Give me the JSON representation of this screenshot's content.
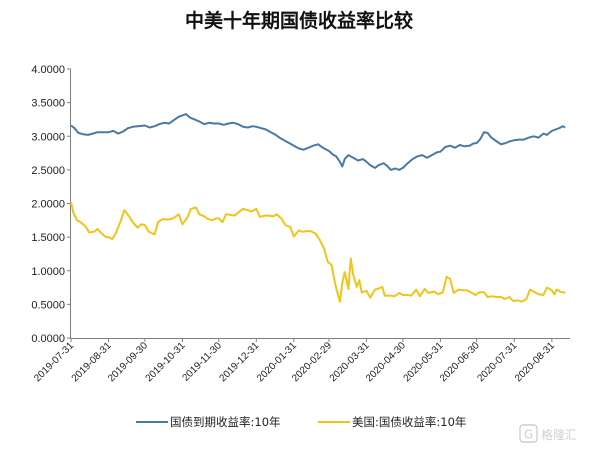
{
  "chart_data": {
    "type": "line",
    "title": "中美十年期国债收益率比较",
    "xlabel": "",
    "ylabel": "",
    "ylim": [
      0,
      4
    ],
    "yticks": [
      "0.0000",
      "0.5000",
      "1.0000",
      "1.5000",
      "2.0000",
      "2.5000",
      "3.0000",
      "3.5000",
      "4.0000"
    ],
    "xticks": [
      "2019-07-31",
      "2019-08-31",
      "2019-09-30",
      "2019-10-31",
      "2019-11-30",
      "2019-12-31",
      "2020-01-31",
      "2020-02-29",
      "2020-03-31",
      "2020-04-30",
      "2020-05-31",
      "2020-06-30",
      "2020-07-31",
      "2020-08-31"
    ],
    "xlim": [
      "2019-07-31",
      "2020-09-15"
    ],
    "grid": false,
    "legend": "bottom",
    "series": [
      {
        "name": "国债到期收益率:10年",
        "color": "#4a79a5",
        "points": [
          [
            "2019-07-31",
            3.16
          ],
          [
            "2019-08-03",
            3.12
          ],
          [
            "2019-08-06",
            3.05
          ],
          [
            "2019-08-10",
            3.03
          ],
          [
            "2019-08-14",
            3.02
          ],
          [
            "2019-08-18",
            3.04
          ],
          [
            "2019-08-22",
            3.06
          ],
          [
            "2019-08-26",
            3.06
          ],
          [
            "2019-08-31",
            3.06
          ],
          [
            "2019-09-04",
            3.08
          ],
          [
            "2019-09-08",
            3.04
          ],
          [
            "2019-09-12",
            3.07
          ],
          [
            "2019-09-16",
            3.12
          ],
          [
            "2019-09-20",
            3.14
          ],
          [
            "2019-09-24",
            3.15
          ],
          [
            "2019-09-30",
            3.16
          ],
          [
            "2019-10-04",
            3.13
          ],
          [
            "2019-10-08",
            3.15
          ],
          [
            "2019-10-12",
            3.18
          ],
          [
            "2019-10-16",
            3.2
          ],
          [
            "2019-10-20",
            3.19
          ],
          [
            "2019-10-24",
            3.24
          ],
          [
            "2019-10-28",
            3.29
          ],
          [
            "2019-10-31",
            3.31
          ],
          [
            "2019-11-03",
            3.33
          ],
          [
            "2019-11-06",
            3.28
          ],
          [
            "2019-11-10",
            3.25
          ],
          [
            "2019-11-14",
            3.22
          ],
          [
            "2019-11-18",
            3.18
          ],
          [
            "2019-11-22",
            3.2
          ],
          [
            "2019-11-26",
            3.19
          ],
          [
            "2019-11-30",
            3.19
          ],
          [
            "2019-12-04",
            3.17
          ],
          [
            "2019-12-08",
            3.19
          ],
          [
            "2019-12-12",
            3.2
          ],
          [
            "2019-12-16",
            3.18
          ],
          [
            "2019-12-20",
            3.14
          ],
          [
            "2019-12-24",
            3.13
          ],
          [
            "2019-12-28",
            3.15
          ],
          [
            "2019-12-31",
            3.14
          ],
          [
            "2020-01-04",
            3.12
          ],
          [
            "2020-01-08",
            3.1
          ],
          [
            "2020-01-12",
            3.06
          ],
          [
            "2020-01-16",
            3.02
          ],
          [
            "2020-01-20",
            2.97
          ],
          [
            "2020-01-24",
            2.93
          ],
          [
            "2020-01-28",
            2.89
          ],
          [
            "2020-01-31",
            2.86
          ],
          [
            "2020-02-04",
            2.82
          ],
          [
            "2020-02-08",
            2.8
          ],
          [
            "2020-02-12",
            2.83
          ],
          [
            "2020-02-16",
            2.86
          ],
          [
            "2020-02-20",
            2.88
          ],
          [
            "2020-02-24",
            2.83
          ],
          [
            "2020-02-29",
            2.78
          ],
          [
            "2020-03-03",
            2.73
          ],
          [
            "2020-03-06",
            2.7
          ],
          [
            "2020-03-09",
            2.62
          ],
          [
            "2020-03-11",
            2.55
          ],
          [
            "2020-03-13",
            2.66
          ],
          [
            "2020-03-16",
            2.72
          ],
          [
            "2020-03-20",
            2.68
          ],
          [
            "2020-03-24",
            2.64
          ],
          [
            "2020-03-28",
            2.66
          ],
          [
            "2020-03-31",
            2.62
          ],
          [
            "2020-04-03",
            2.57
          ],
          [
            "2020-04-07",
            2.53
          ],
          [
            "2020-04-10",
            2.57
          ],
          [
            "2020-04-14",
            2.6
          ],
          [
            "2020-04-17",
            2.56
          ],
          [
            "2020-04-20",
            2.5
          ],
          [
            "2020-04-24",
            2.52
          ],
          [
            "2020-04-27",
            2.5
          ],
          [
            "2020-04-30",
            2.53
          ],
          [
            "2020-05-04",
            2.6
          ],
          [
            "2020-05-08",
            2.66
          ],
          [
            "2020-05-12",
            2.7
          ],
          [
            "2020-05-16",
            2.72
          ],
          [
            "2020-05-20",
            2.68
          ],
          [
            "2020-05-24",
            2.72
          ],
          [
            "2020-05-28",
            2.76
          ],
          [
            "2020-05-31",
            2.77
          ],
          [
            "2020-06-04",
            2.84
          ],
          [
            "2020-06-08",
            2.86
          ],
          [
            "2020-06-12",
            2.83
          ],
          [
            "2020-06-16",
            2.87
          ],
          [
            "2020-06-20",
            2.85
          ],
          [
            "2020-06-24",
            2.86
          ],
          [
            "2020-06-27",
            2.89
          ],
          [
            "2020-06-30",
            2.9
          ],
          [
            "2020-07-03",
            2.96
          ],
          [
            "2020-07-06",
            3.06
          ],
          [
            "2020-07-09",
            3.05
          ],
          [
            "2020-07-12",
            2.98
          ],
          [
            "2020-07-16",
            2.93
          ],
          [
            "2020-07-20",
            2.88
          ],
          [
            "2020-07-24",
            2.9
          ],
          [
            "2020-07-28",
            2.93
          ],
          [
            "2020-07-31",
            2.94
          ],
          [
            "2020-08-04",
            2.95
          ],
          [
            "2020-08-08",
            2.95
          ],
          [
            "2020-08-12",
            2.98
          ],
          [
            "2020-08-16",
            3.0
          ],
          [
            "2020-08-20",
            2.98
          ],
          [
            "2020-08-24",
            3.04
          ],
          [
            "2020-08-27",
            3.02
          ],
          [
            "2020-08-31",
            3.08
          ],
          [
            "2020-09-03",
            3.1
          ],
          [
            "2020-09-06",
            3.12
          ],
          [
            "2020-09-09",
            3.15
          ],
          [
            "2020-09-11",
            3.13
          ]
        ]
      },
      {
        "name": "美国:国债收益率:10年",
        "color": "#f0c419",
        "points": [
          [
            "2019-07-31",
            2.02
          ],
          [
            "2019-08-02",
            1.86
          ],
          [
            "2019-08-05",
            1.75
          ],
          [
            "2019-08-08",
            1.72
          ],
          [
            "2019-08-12",
            1.66
          ],
          [
            "2019-08-15",
            1.57
          ],
          [
            "2019-08-19",
            1.58
          ],
          [
            "2019-08-22",
            1.62
          ],
          [
            "2019-08-26",
            1.54
          ],
          [
            "2019-08-29",
            1.5
          ],
          [
            "2019-08-31",
            1.5
          ],
          [
            "2019-09-03",
            1.47
          ],
          [
            "2019-09-06",
            1.56
          ],
          [
            "2019-09-10",
            1.74
          ],
          [
            "2019-09-13",
            1.9
          ],
          [
            "2019-09-17",
            1.81
          ],
          [
            "2019-09-20",
            1.72
          ],
          [
            "2019-09-24",
            1.64
          ],
          [
            "2019-09-27",
            1.69
          ],
          [
            "2019-09-30",
            1.68
          ],
          [
            "2019-10-03",
            1.58
          ],
          [
            "2019-10-08",
            1.54
          ],
          [
            "2019-10-11",
            1.73
          ],
          [
            "2019-10-15",
            1.77
          ],
          [
            "2019-10-18",
            1.76
          ],
          [
            "2019-10-22",
            1.77
          ],
          [
            "2019-10-25",
            1.8
          ],
          [
            "2019-10-28",
            1.84
          ],
          [
            "2019-10-31",
            1.69
          ],
          [
            "2019-11-04",
            1.79
          ],
          [
            "2019-11-07",
            1.92
          ],
          [
            "2019-11-11",
            1.94
          ],
          [
            "2019-11-14",
            1.84
          ],
          [
            "2019-11-18",
            1.81
          ],
          [
            "2019-11-21",
            1.77
          ],
          [
            "2019-11-25",
            1.75
          ],
          [
            "2019-11-28",
            1.78
          ],
          [
            "2019-11-30",
            1.78
          ],
          [
            "2019-12-03",
            1.72
          ],
          [
            "2019-12-06",
            1.84
          ],
          [
            "2019-12-10",
            1.83
          ],
          [
            "2019-12-13",
            1.82
          ],
          [
            "2019-12-17",
            1.88
          ],
          [
            "2019-12-20",
            1.92
          ],
          [
            "2019-12-24",
            1.9
          ],
          [
            "2019-12-27",
            1.88
          ],
          [
            "2019-12-31",
            1.92
          ],
          [
            "2020-01-03",
            1.8
          ],
          [
            "2020-01-07",
            1.82
          ],
          [
            "2020-01-10",
            1.82
          ],
          [
            "2020-01-14",
            1.81
          ],
          [
            "2020-01-17",
            1.84
          ],
          [
            "2020-01-21",
            1.77
          ],
          [
            "2020-01-24",
            1.68
          ],
          [
            "2020-01-28",
            1.65
          ],
          [
            "2020-01-31",
            1.51
          ],
          [
            "2020-02-04",
            1.6
          ],
          [
            "2020-02-07",
            1.58
          ],
          [
            "2020-02-11",
            1.59
          ],
          [
            "2020-02-14",
            1.59
          ],
          [
            "2020-02-18",
            1.55
          ],
          [
            "2020-02-21",
            1.47
          ],
          [
            "2020-02-25",
            1.33
          ],
          [
            "2020-02-28",
            1.13
          ],
          [
            "2020-03-02",
            1.09
          ],
          [
            "2020-03-04",
            0.91
          ],
          [
            "2020-03-06",
            0.74
          ],
          [
            "2020-03-09",
            0.54
          ],
          [
            "2020-03-11",
            0.82
          ],
          [
            "2020-03-13",
            0.98
          ],
          [
            "2020-03-16",
            0.73
          ],
          [
            "2020-03-18",
            1.18
          ],
          [
            "2020-03-20",
            0.94
          ],
          [
            "2020-03-23",
            0.76
          ],
          [
            "2020-03-25",
            0.86
          ],
          [
            "2020-03-27",
            0.68
          ],
          [
            "2020-03-31",
            0.7
          ],
          [
            "2020-04-03",
            0.6
          ],
          [
            "2020-04-07",
            0.72
          ],
          [
            "2020-04-09",
            0.73
          ],
          [
            "2020-04-13",
            0.76
          ],
          [
            "2020-04-15",
            0.63
          ],
          [
            "2020-04-20",
            0.63
          ],
          [
            "2020-04-23",
            0.62
          ],
          [
            "2020-04-27",
            0.67
          ],
          [
            "2020-04-30",
            0.64
          ],
          [
            "2020-05-04",
            0.64
          ],
          [
            "2020-05-07",
            0.63
          ],
          [
            "2020-05-11",
            0.72
          ],
          [
            "2020-05-14",
            0.62
          ],
          [
            "2020-05-18",
            0.73
          ],
          [
            "2020-05-21",
            0.67
          ],
          [
            "2020-05-26",
            0.69
          ],
          [
            "2020-05-29",
            0.65
          ],
          [
            "2020-06-02",
            0.68
          ],
          [
            "2020-06-05",
            0.91
          ],
          [
            "2020-06-08",
            0.88
          ],
          [
            "2020-06-11",
            0.67
          ],
          [
            "2020-06-15",
            0.72
          ],
          [
            "2020-06-18",
            0.71
          ],
          [
            "2020-06-22",
            0.71
          ],
          [
            "2020-06-25",
            0.68
          ],
          [
            "2020-06-29",
            0.64
          ],
          [
            "2020-07-02",
            0.68
          ],
          [
            "2020-07-06",
            0.68
          ],
          [
            "2020-07-09",
            0.61
          ],
          [
            "2020-07-13",
            0.62
          ],
          [
            "2020-07-16",
            0.61
          ],
          [
            "2020-07-20",
            0.61
          ],
          [
            "2020-07-23",
            0.58
          ],
          [
            "2020-07-27",
            0.61
          ],
          [
            "2020-07-30",
            0.55
          ],
          [
            "2020-08-03",
            0.56
          ],
          [
            "2020-08-06",
            0.54
          ],
          [
            "2020-08-10",
            0.58
          ],
          [
            "2020-08-13",
            0.72
          ],
          [
            "2020-08-17",
            0.68
          ],
          [
            "2020-08-20",
            0.65
          ],
          [
            "2020-08-24",
            0.64
          ],
          [
            "2020-08-27",
            0.75
          ],
          [
            "2020-08-31",
            0.71
          ],
          [
            "2020-09-02",
            0.65
          ],
          [
            "2020-09-04",
            0.72
          ],
          [
            "2020-09-08",
            0.68
          ],
          [
            "2020-09-10",
            0.68
          ],
          [
            "2020-09-11",
            0.67
          ]
        ]
      }
    ]
  },
  "watermark": {
    "text": "格隆汇",
    "logo_glyph": "G"
  }
}
